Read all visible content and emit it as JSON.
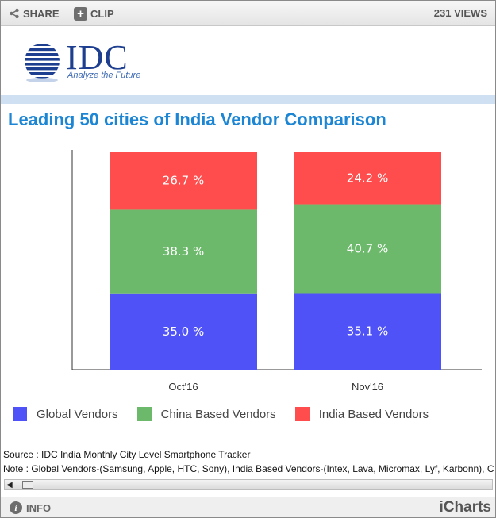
{
  "toolbar": {
    "share_label": "SHARE",
    "clip_label": "CLIP",
    "views": "231 VIEWS"
  },
  "logo": {
    "text": "IDC",
    "tagline": "Analyze the Future"
  },
  "chart_data": {
    "type": "bar",
    "stacked": true,
    "title": "Leading 50 cities of India Vendor Comparison",
    "categories": [
      "Oct'16",
      "Nov'16"
    ],
    "series": [
      {
        "name": "Global Vendors",
        "values": [
          35.0,
          35.1
        ],
        "labels": [
          "35.0 %",
          "35.1 %"
        ],
        "color": "#4f52f7"
      },
      {
        "name": "China Based Vendors",
        "values": [
          38.3,
          40.7
        ],
        "labels": [
          "38.3 %",
          "40.7 %"
        ],
        "color": "#6cb96c"
      },
      {
        "name": "India Based Vendors",
        "values": [
          26.7,
          24.2
        ],
        "labels": [
          "26.7 %",
          "24.2 %"
        ],
        "color": "#ff4d4d"
      }
    ],
    "ylim": [
      0,
      100
    ],
    "grid": false,
    "legend": "bottom"
  },
  "source_text": "Source : IDC India Monthly City Level Smartphone Tracker",
  "note_text": "Note : Global Vendors-(Samsung, Apple, HTC, Sony), India Based Vendors-(Intex, Lava, Micromax, Lyf, Karbonn), C",
  "footer": {
    "info_label": "INFO",
    "brand": "iCharts"
  }
}
